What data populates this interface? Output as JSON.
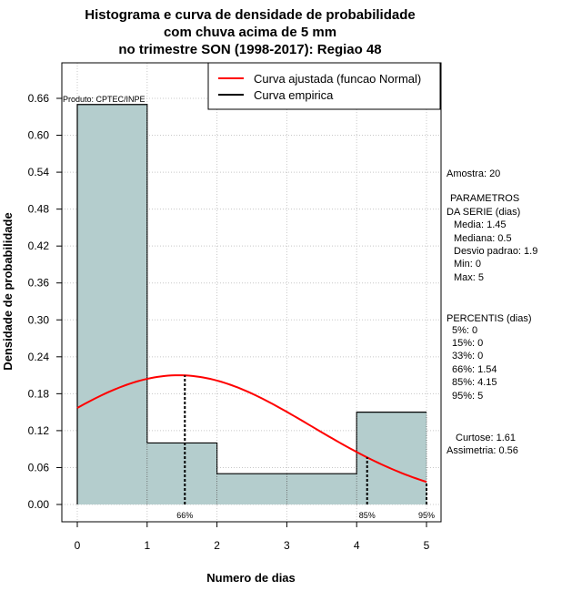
{
  "chart_data": {
    "type": "bar",
    "title_lines": [
      "Histograma e curva de densidade de probabilidade",
      "com chuva acima de 5 mm",
      "no trimestre SON (1998-2017): Regiao 48"
    ],
    "xlabel": "Numero de dias",
    "ylabel": "Densidade de probabilidade",
    "xlim": [
      -0.2,
      5.2
    ],
    "ylim": [
      0,
      0.7
    ],
    "x_ticks": [
      0,
      1,
      2,
      3,
      4,
      5
    ],
    "y_ticks": [
      0.0,
      0.06,
      0.12,
      0.18,
      0.24,
      0.3,
      0.36,
      0.42,
      0.48,
      0.54,
      0.6,
      0.66
    ],
    "y_tick_labels": [
      "0.00",
      "0.06",
      "0.12",
      "0.18",
      "0.24",
      "0.30",
      "0.36",
      "0.42",
      "0.48",
      "0.54",
      "0.60",
      "0.66"
    ],
    "grid": true,
    "bars": [
      {
        "x0": 0,
        "x1": 1,
        "value": 0.65
      },
      {
        "x0": 1,
        "x1": 2,
        "value": 0.1
      },
      {
        "x0": 2,
        "x1": 3,
        "value": 0.05
      },
      {
        "x0": 3,
        "x1": 4,
        "value": 0.05
      },
      {
        "x0": 4,
        "x1": 5,
        "value": 0.15
      }
    ],
    "bar_color": "#b4cdcd",
    "fitted_curve": {
      "name": "Curva ajustada (funcao Normal)",
      "color": "#ff0000",
      "mean": 1.45,
      "sd": 1.9
    },
    "empirical_curve": {
      "name": "Curva empirica",
      "color": "#000000"
    },
    "percentile_markers": [
      {
        "x": 1.54,
        "label": "66%"
      },
      {
        "x": 4.15,
        "label": "85%"
      },
      {
        "x": 5.0,
        "label": "95%"
      }
    ],
    "legend_position": "top-right",
    "product_label": "Produto: CPTEC/INPE"
  },
  "side_panel": {
    "amostra": "Amostra: 20",
    "param_title_1": "PARAMETROS",
    "param_title_2": "DA SERIE (dias)",
    "params": [
      "Media: 1.45",
      "Mediana: 0.5",
      "Desvio padrao: 1.9",
      "Min: 0",
      "Max: 5"
    ],
    "percentis_title": "PERCENTIS (dias)",
    "percentis": [
      "5%: 0",
      "15%: 0",
      "33%: 0",
      "66%: 1.54",
      "85%: 4.15",
      "95%: 5"
    ],
    "curtose": "Curtose: 1.61",
    "assimetria": "Assimetria: 0.56"
  }
}
